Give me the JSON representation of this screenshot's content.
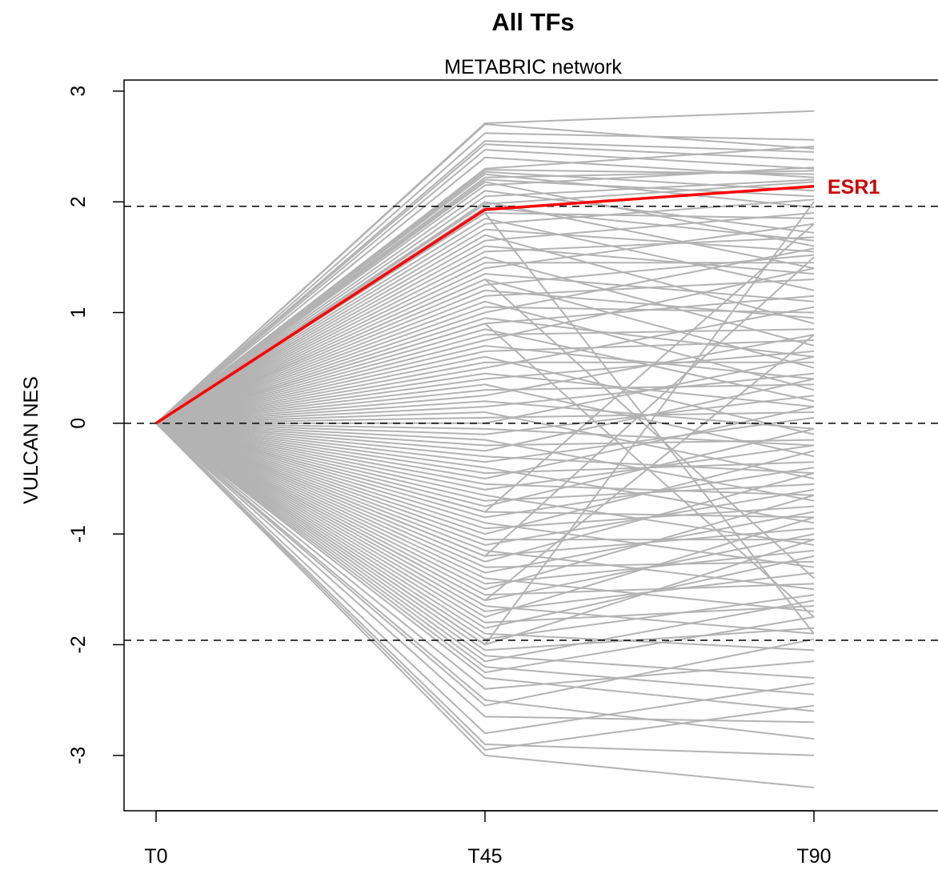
{
  "chart_data": {
    "type": "line",
    "title": "All TFs",
    "subtitle": "METABRIC network",
    "xlabel": "",
    "ylabel": "VULCAN NES",
    "categories": [
      "T0",
      "T45",
      "T90"
    ],
    "ylim": [
      -3.5,
      3.1
    ],
    "yticks": [
      -3,
      -2,
      -1,
      0,
      1,
      2,
      3
    ],
    "ytick_labels": [
      "-3",
      "-2",
      "-1",
      "0",
      "1",
      "2",
      "3"
    ],
    "reference_lines": [
      -1.96,
      0,
      1.96
    ],
    "grid": false,
    "background_series_color": "#b3b3b3",
    "highlight": {
      "name": "ESR1",
      "values": [
        0,
        1.93,
        2.14
      ],
      "color": "#ff0000",
      "label_color": "#cc0000"
    },
    "background_series_endpoints": [
      [
        2.71,
        2.82
      ],
      [
        2.7,
        2.48
      ],
      [
        2.62,
        2.56
      ],
      [
        2.55,
        2.45
      ],
      [
        2.52,
        2.38
      ],
      [
        2.47,
        2.3
      ],
      [
        2.4,
        2.22
      ],
      [
        2.3,
        2.5
      ],
      [
        2.29,
        2.25
      ],
      [
        2.27,
        2.1
      ],
      [
        2.25,
        1.95
      ],
      [
        2.22,
        2.28
      ],
      [
        2.2,
        2.05
      ],
      [
        2.18,
        1.6
      ],
      [
        2.15,
        2.31
      ],
      [
        2.1,
        1.72
      ],
      [
        2.05,
        2.2
      ],
      [
        2.0,
        1.4
      ],
      [
        1.98,
        2.18
      ],
      [
        1.95,
        1.65
      ],
      [
        1.9,
        1.85
      ],
      [
        1.85,
        1.2
      ],
      [
        1.8,
        2.02
      ],
      [
        1.75,
        1.55
      ],
      [
        1.7,
        0.9
      ],
      [
        1.65,
        1.9
      ],
      [
        1.6,
        1.35
      ],
      [
        1.55,
        1.68
      ],
      [
        1.5,
        0.7
      ],
      [
        1.45,
        1.45
      ],
      [
        1.4,
        1.8
      ],
      [
        1.35,
        1.1
      ],
      [
        1.3,
        0.5
      ],
      [
        1.25,
        1.52
      ],
      [
        1.2,
        0.95
      ],
      [
        1.15,
        1.3
      ],
      [
        1.1,
        0.3
      ],
      [
        1.05,
        1.0
      ],
      [
        1.0,
        1.58
      ],
      [
        0.95,
        0.6
      ],
      [
        0.9,
        1.15
      ],
      [
        0.85,
        0.2
      ],
      [
        0.8,
        0.85
      ],
      [
        0.75,
        1.4
      ],
      [
        0.7,
        0.4
      ],
      [
        0.65,
        0.75
      ],
      [
        0.6,
        -0.1
      ],
      [
        0.55,
        0.55
      ],
      [
        0.5,
        1.05
      ],
      [
        0.45,
        0.15
      ],
      [
        0.4,
        0.65
      ],
      [
        0.35,
        -0.3
      ],
      [
        0.3,
        0.35
      ],
      [
        0.25,
        0.8
      ],
      [
        0.2,
        -0.05
      ],
      [
        0.15,
        0.45
      ],
      [
        0.1,
        -0.5
      ],
      [
        0.05,
        0.1
      ],
      [
        0.0,
        0.6
      ],
      [
        -0.05,
        -0.2
      ],
      [
        -0.1,
        0.25
      ],
      [
        -0.15,
        -0.7
      ],
      [
        -0.2,
        -0.15
      ],
      [
        -0.25,
        0.4
      ],
      [
        -0.3,
        -0.45
      ],
      [
        -0.35,
        0.05
      ],
      [
        -0.4,
        -0.9
      ],
      [
        -0.45,
        -0.35
      ],
      [
        -0.5,
        0.15
      ],
      [
        -0.55,
        -0.65
      ],
      [
        -0.6,
        -0.2
      ],
      [
        -0.65,
        -1.1
      ],
      [
        -0.7,
        -0.55
      ],
      [
        -0.75,
        -0.05
      ],
      [
        -0.8,
        -0.85
      ],
      [
        -0.85,
        -0.4
      ],
      [
        -0.9,
        -1.3
      ],
      [
        -0.95,
        -0.75
      ],
      [
        -1.0,
        -0.25
      ],
      [
        -1.05,
        -1.05
      ],
      [
        -1.1,
        -0.6
      ],
      [
        -1.15,
        -1.5
      ],
      [
        -1.2,
        -0.95
      ],
      [
        -1.25,
        -0.45
      ],
      [
        -1.3,
        -1.25
      ],
      [
        -1.35,
        -0.8
      ],
      [
        -1.4,
        -1.7
      ],
      [
        -1.45,
        -1.15
      ],
      [
        -1.5,
        -0.65
      ],
      [
        -1.55,
        -1.45
      ],
      [
        -1.6,
        -1.0
      ],
      [
        -1.65,
        -1.9
      ],
      [
        -1.7,
        -1.35
      ],
      [
        -1.75,
        -0.85
      ],
      [
        -1.8,
        -1.65
      ],
      [
        -1.85,
        -1.2
      ],
      [
        -1.9,
        -2.05
      ],
      [
        -1.95,
        -1.55
      ],
      [
        -2.0,
        -1.05
      ],
      [
        -2.05,
        -1.85
      ],
      [
        -2.1,
        -2.3
      ],
      [
        -2.15,
        -1.6
      ],
      [
        -2.2,
        -2.45
      ],
      [
        -2.25,
        -1.75
      ],
      [
        -2.3,
        -2.6
      ],
      [
        -2.4,
        -2.15
      ],
      [
        -2.5,
        -2.85
      ],
      [
        -2.55,
        -1.95
      ],
      [
        -2.65,
        -2.7
      ],
      [
        -2.8,
        -2.35
      ],
      [
        -2.9,
        -3.0
      ],
      [
        -2.95,
        -2.55
      ],
      [
        -3.0,
        -3.29
      ],
      [
        -2.0,
        2.0
      ],
      [
        1.9,
        -1.9
      ],
      [
        -1.2,
        1.5
      ],
      [
        1.3,
        -1.4
      ],
      [
        -0.8,
        1.8
      ],
      [
        0.9,
        -1.75
      ],
      [
        -1.6,
        0.8
      ]
    ]
  }
}
